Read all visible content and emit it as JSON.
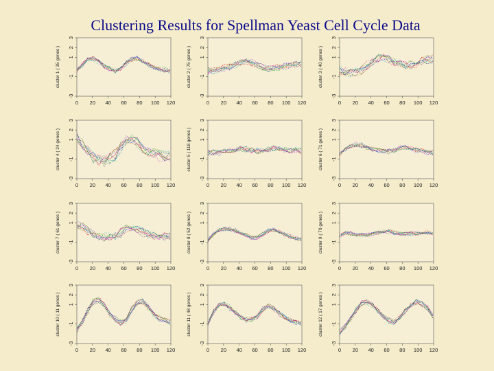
{
  "slide": {
    "title": "Clustering Results for Spellman Yeast Cell Cycle Data"
  },
  "chart_data": {
    "type": "line",
    "xlim": [
      0,
      120
    ],
    "ylim": [
      -3,
      3
    ],
    "xticks": [
      "0",
      "20",
      "40",
      "60",
      "80",
      "100",
      "120"
    ],
    "yticks": [
      "-3",
      "-1",
      "1",
      "2",
      "3"
    ],
    "x": [
      0,
      7,
      14,
      21,
      28,
      35,
      42,
      49,
      56,
      63,
      70,
      77,
      84,
      91,
      98,
      105,
      112,
      119
    ],
    "series_colors": [
      "#d11",
      "#1a9a1a",
      "#1a3fd0",
      "#1fa7a7",
      "#c21cc2",
      "#8a8a10",
      "#333333"
    ],
    "panels": [
      {
        "label": "cluster 1 ( 35 genes )",
        "mean": [
          -0.4,
          0.2,
          0.8,
          0.9,
          0.5,
          0.1,
          -0.2,
          -0.4,
          -0.1,
          0.4,
          0.8,
          0.9,
          0.6,
          0.2,
          0.0,
          -0.2,
          -0.3,
          -0.4
        ],
        "spread": 0.25
      },
      {
        "label": "cluster 2 ( 75 genes )",
        "mean": [
          -0.4,
          -0.4,
          -0.3,
          -0.1,
          0.0,
          0.2,
          0.4,
          0.5,
          0.4,
          0.2,
          0.0,
          -0.1,
          -0.1,
          0.0,
          0.1,
          0.2,
          0.3,
          0.3
        ],
        "spread": 0.35
      },
      {
        "label": "cluster 3 ( 40 genes )",
        "mean": [
          -0.4,
          -0.5,
          -0.6,
          -0.5,
          -0.3,
          0.2,
          0.6,
          0.9,
          1.0,
          0.8,
          0.5,
          0.3,
          0.2,
          0.2,
          0.4,
          0.6,
          0.7,
          0.8
        ],
        "spread": 0.45
      },
      {
        "label": "cluster 4 ( 24 genes )",
        "mean": [
          1.2,
          0.6,
          -0.2,
          -0.9,
          -1.2,
          -1.2,
          -1.0,
          -0.6,
          0.2,
          0.9,
          1.1,
          0.8,
          0.2,
          -0.2,
          -0.4,
          -0.6,
          -0.7,
          -0.8
        ],
        "spread": 0.6
      },
      {
        "label": "cluster 5 ( 118 genes )",
        "mean": [
          -0.3,
          -0.3,
          -0.3,
          -0.2,
          -0.1,
          0.0,
          0.1,
          0.0,
          -0.1,
          -0.1,
          -0.1,
          0.0,
          0.1,
          0.1,
          0.0,
          -0.1,
          -0.1,
          -0.2
        ],
        "spread": 0.3
      },
      {
        "label": "cluster 6 ( 71 genes )",
        "mean": [
          -0.5,
          0.0,
          0.3,
          0.5,
          0.4,
          0.2,
          0.0,
          -0.1,
          -0.2,
          -0.2,
          -0.1,
          0.1,
          0.2,
          0.1,
          -0.1,
          -0.2,
          -0.3,
          -0.4
        ],
        "spread": 0.25
      },
      {
        "label": "cluster 7 ( 61 genes )",
        "mean": [
          0.8,
          0.6,
          0.2,
          -0.2,
          -0.4,
          -0.5,
          -0.5,
          -0.3,
          0.0,
          0.4,
          0.5,
          0.3,
          0.0,
          -0.2,
          -0.3,
          -0.4,
          -0.4,
          -0.4
        ],
        "spread": 0.45
      },
      {
        "label": "cluster 8 ( 52 genes )",
        "mean": [
          -0.8,
          -0.2,
          0.2,
          0.4,
          0.4,
          0.2,
          0.0,
          -0.3,
          -0.5,
          -0.5,
          -0.2,
          0.2,
          0.3,
          0.1,
          -0.2,
          -0.4,
          -0.6,
          -0.7
        ],
        "spread": 0.2
      },
      {
        "label": "cluster 9 ( 70 genes )",
        "mean": [
          -0.3,
          -0.1,
          -0.1,
          -0.2,
          -0.2,
          -0.2,
          -0.1,
          0.0,
          0.1,
          0.1,
          0.0,
          -0.1,
          -0.1,
          -0.1,
          -0.1,
          0.0,
          0.0,
          -0.1
        ],
        "spread": 0.2
      },
      {
        "label": "cluster 10 ( 11 genes )",
        "mean": [
          -1.7,
          -0.8,
          0.4,
          1.3,
          1.5,
          0.9,
          0.1,
          -0.5,
          -0.9,
          -0.7,
          0.5,
          1.3,
          1.4,
          0.7,
          0.0,
          -0.4,
          -0.6,
          -0.8
        ],
        "spread": 0.3
      },
      {
        "label": "cluster 11 ( 48 genes )",
        "mean": [
          -1.0,
          0.2,
          1.0,
          1.1,
          0.7,
          0.2,
          -0.3,
          -0.6,
          -0.5,
          -0.2,
          0.5,
          0.9,
          0.6,
          0.1,
          -0.3,
          -0.6,
          -0.8,
          -0.9
        ],
        "spread": 0.25
      },
      {
        "label": "cluster 12 ( 17 genes )",
        "mean": [
          -1.8,
          -1.3,
          -0.5,
          0.4,
          1.1,
          1.3,
          1.0,
          0.4,
          -0.2,
          -0.7,
          -0.8,
          -0.3,
          0.4,
          1.0,
          1.3,
          1.1,
          0.6,
          -0.2
        ],
        "spread": 0.3
      }
    ]
  }
}
